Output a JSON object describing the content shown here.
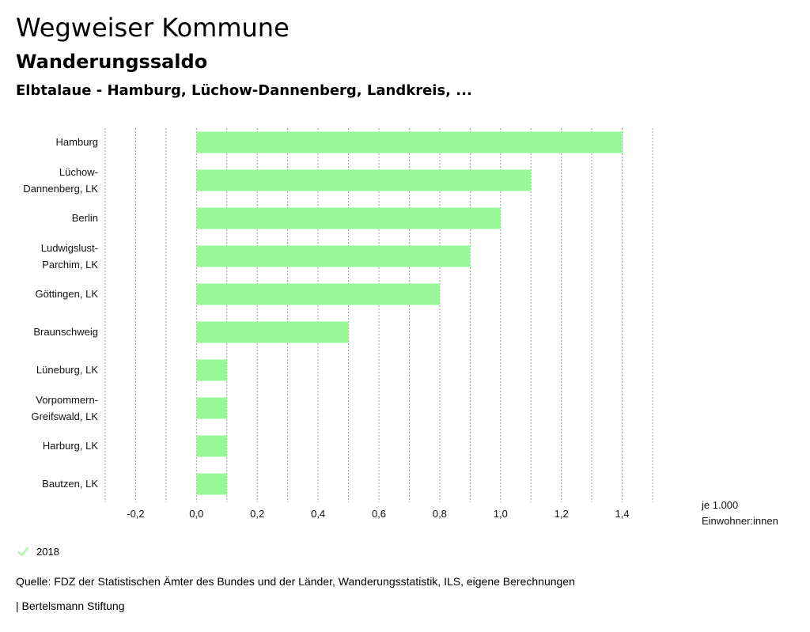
{
  "header": {
    "title": "Wegweiser Kommune",
    "subtitle": "Wanderungssaldo",
    "region": "Elbtalaue - Hamburg, Lüchow-Dannenberg, Landkreis, ..."
  },
  "chart_data": {
    "type": "bar",
    "orientation": "horizontal",
    "categories": [
      "Hamburg",
      "Lüchow-Dannenberg, LK",
      "Berlin",
      "Ludwigslust-Parchim, LK",
      "Göttingen, LK",
      "Braunschweig",
      "Lüneburg, LK",
      "Vorpommern-Greifswald, LK",
      "Harburg, LK",
      "Bautzen, LK"
    ],
    "category_lines": [
      [
        "Hamburg"
      ],
      [
        "Lüchow-",
        "Dannenberg, LK"
      ],
      [
        "Berlin"
      ],
      [
        "Ludwigslust-",
        "Parchim, LK"
      ],
      [
        "Göttingen, LK"
      ],
      [
        "Braunschweig"
      ],
      [
        "Lüneburg, LK"
      ],
      [
        "Vorpommern-",
        "Greifswald, LK"
      ],
      [
        "Harburg, LK"
      ],
      [
        "Bautzen, LK"
      ]
    ],
    "series": [
      {
        "name": "2018",
        "color": "#98f898",
        "values": [
          1.4,
          1.1,
          1.0,
          0.9,
          0.8,
          0.5,
          0.1,
          0.1,
          0.1,
          0.1
        ]
      }
    ],
    "xlim": [
      -0.3,
      1.5
    ],
    "x_ticks": [
      -0.2,
      0.0,
      0.2,
      0.4,
      0.6,
      0.8,
      1.0,
      1.2,
      1.4
    ],
    "x_tick_labels": [
      "-0,2",
      "0,0",
      "0,2",
      "0,4",
      "0,6",
      "0,8",
      "1,0",
      "1,2",
      "1,4"
    ],
    "grid_values": [
      -0.3,
      -0.2,
      -0.1,
      0.0,
      0.1,
      0.2,
      0.3,
      0.4,
      0.5,
      0.6,
      0.7,
      0.8,
      0.9,
      1.0,
      1.1,
      1.2,
      1.3,
      1.4,
      1.5
    ],
    "unit_lines": [
      "je 1.000",
      "Einwohner:innen"
    ],
    "grid": true
  },
  "legend": {
    "label": "2018",
    "icon": "check-icon",
    "color": "#98f898"
  },
  "footer": {
    "source": "Quelle: FDZ der Statistischen Ämter des Bundes und der Länder, Wanderungsstatistik, ILS, eigene Berechnungen",
    "publisher": "| Bertelsmann Stiftung"
  }
}
